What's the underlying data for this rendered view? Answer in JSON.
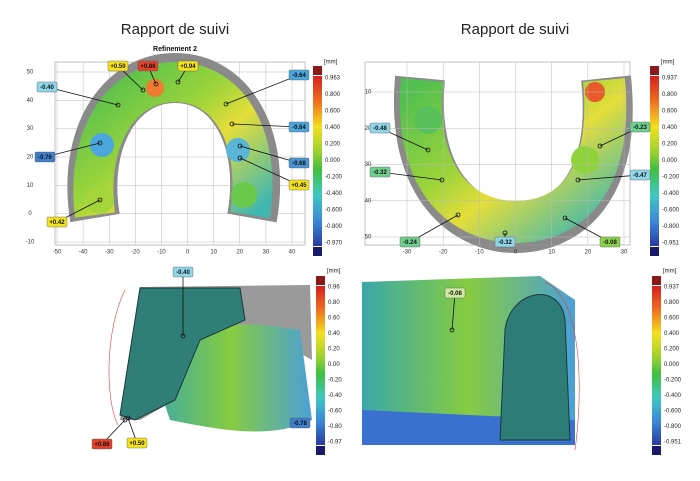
{
  "panels": [
    {
      "title": "Rapport de suivi",
      "subtitle": "Refinement 2",
      "x_ticks": [
        "-50",
        "-40",
        "-30",
        "-20",
        "-10",
        "0",
        "10",
        "20",
        "30",
        "40"
      ],
      "y_ticks": [
        "50",
        "40",
        "30",
        "20",
        "10",
        "0",
        "-10"
      ],
      "colorbar": {
        "unit": "[mm]",
        "labels": [
          "0.963",
          "0.800",
          "0.600",
          "0.400",
          "0.200",
          "0.000",
          "-0.200",
          "-0.400",
          "-0.600",
          "-0.800",
          "-0.970"
        ]
      },
      "callouts": [
        {
          "label": "-0.40",
          "color": "#8fd6ea"
        },
        {
          "label": "+0.50",
          "color": "#f4e21c"
        },
        {
          "label": "+0.86",
          "color": "#e2412b"
        },
        {
          "label": "+0.94",
          "color": "#f4e21c"
        },
        {
          "label": "-0.64",
          "color": "#4aa6dc"
        },
        {
          "label": "-0.64",
          "color": "#4aa6dc"
        },
        {
          "label": "-0.76",
          "color": "#3f7fc9"
        },
        {
          "label": "-0.68",
          "color": "#4a94d6"
        },
        {
          "label": "+0.45",
          "color": "#f4e21c"
        },
        {
          "label": "+0.42",
          "color": "#f4e21c"
        }
      ]
    },
    {
      "title": "Rapport de suivi",
      "x_ticks": [
        "-30",
        "-20",
        "-10",
        "0",
        "10",
        "20",
        "30"
      ],
      "y_ticks": [
        "10",
        "20",
        "30",
        "40",
        "50"
      ],
      "colorbar": {
        "unit": "[mm]",
        "labels": [
          "0.937",
          "0.800",
          "0.600",
          "0.400",
          "0.200",
          "0.000",
          "-0.200",
          "-0.400",
          "-0.600",
          "-0.800",
          "-0.951"
        ]
      },
      "callouts": [
        {
          "label": "-0.48",
          "color": "#8fd6ea"
        },
        {
          "label": "-0.23",
          "color": "#6fcf8f"
        },
        {
          "label": "-0.32",
          "color": "#6fcf8f"
        },
        {
          "label": "-0.47",
          "color": "#8fd6ea"
        },
        {
          "label": "-0.24",
          "color": "#6fcf8f"
        },
        {
          "label": "-0.32",
          "color": "#8fd6ea"
        },
        {
          "label": "-0.08",
          "color": "#8ad24a"
        }
      ]
    },
    {
      "colorbar": {
        "unit": "[mm]",
        "labels": [
          "0.96",
          "0.80",
          "0.60",
          "0.40",
          "0.20",
          "0.00",
          "-0.20",
          "-0.40",
          "-0.60",
          "-0.80",
          "-0.97"
        ]
      },
      "callouts": [
        {
          "label": "-0.40",
          "color": "#8fd6ea"
        },
        {
          "label": "+0.86",
          "color": "#e2412b"
        },
        {
          "label": "+0.50",
          "color": "#f4e21c"
        },
        {
          "label": "-0.78",
          "color": "#3f7fc9"
        }
      ]
    },
    {
      "colorbar": {
        "unit": "[mm]",
        "labels": [
          "0.937",
          "0.800",
          "0.600",
          "0.400",
          "0.200",
          "0.000",
          "-0.200",
          "-0.400",
          "-0.600",
          "-0.800",
          "-0.951"
        ]
      },
      "callouts": [
        {
          "label": "-0.08",
          "color": "#cfe9a0"
        }
      ]
    }
  ]
}
